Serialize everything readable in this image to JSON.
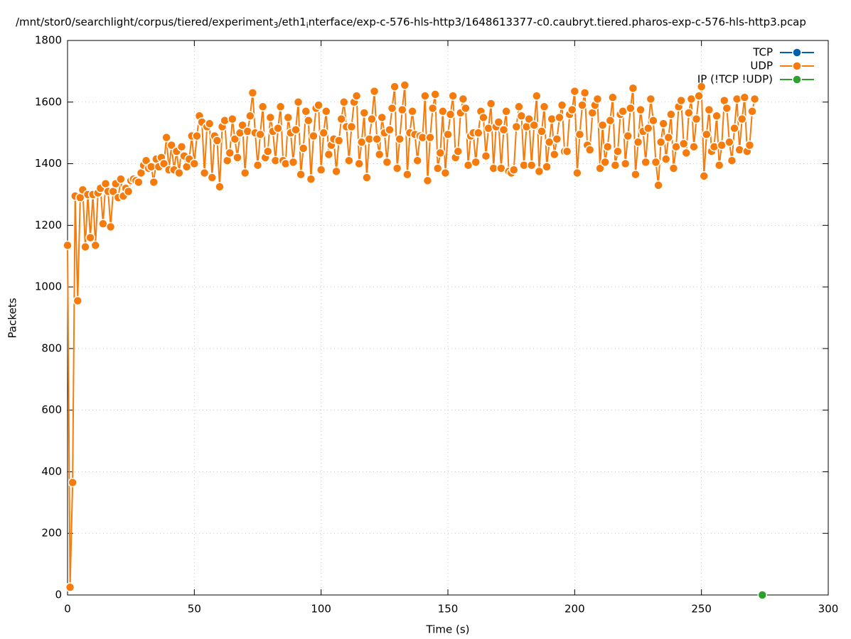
{
  "chart_data": {
    "type": "line",
    "title": [
      "/mnt/stor0/searchlight/corpus/tiered/experiment",
      "3",
      "/eth1",
      "i",
      "nterface/exp-c-576-hls-http3/1648613377-c0.caubryt.tiered.pharos-exp-c-576-hls-http3.pcap"
    ],
    "x_label": "Time (s)",
    "y_label": "Packets",
    "xlim": [
      0,
      300
    ],
    "xticks": [
      0,
      50,
      100,
      150,
      200,
      250,
      300
    ],
    "ylim": [
      0,
      1800
    ],
    "yticks": [
      0,
      200,
      400,
      600,
      800,
      1000,
      1200,
      1400,
      1600,
      1800
    ],
    "grid": true,
    "legend": "top-right",
    "series": [
      {
        "name": "TCP",
        "color": "#0060ad",
        "x": [],
        "values": []
      },
      {
        "name": "UDP",
        "color": "#f57c0c",
        "x": [
          0,
          1,
          2,
          3,
          4,
          5,
          6,
          7,
          8,
          9,
          10,
          11,
          12,
          13,
          14,
          15,
          16,
          17,
          18,
          19,
          20,
          21,
          22,
          23,
          24,
          25,
          26,
          27,
          28,
          29,
          30,
          31,
          32,
          33,
          34,
          35,
          36,
          37,
          38,
          39,
          40,
          41,
          42,
          43,
          44,
          45,
          46,
          47,
          48,
          49,
          50,
          51,
          52,
          53,
          54,
          55,
          56,
          57,
          58,
          59,
          60,
          61,
          62,
          63,
          64,
          65,
          66,
          67,
          68,
          69,
          70,
          71,
          72,
          73,
          74,
          75,
          76,
          77,
          78,
          79,
          80,
          81,
          82,
          83,
          84,
          85,
          86,
          87,
          88,
          89,
          90,
          91,
          92,
          93,
          94,
          95,
          96,
          97,
          98,
          99,
          100,
          101,
          102,
          103,
          104,
          105,
          106,
          107,
          108,
          109,
          110,
          111,
          112,
          113,
          114,
          115,
          116,
          117,
          118,
          119,
          120,
          121,
          122,
          123,
          124,
          125,
          126,
          127,
          128,
          129,
          130,
          131,
          132,
          133,
          134,
          135,
          136,
          137,
          138,
          139,
          140,
          141,
          142,
          143,
          144,
          145,
          146,
          147,
          148,
          149,
          150,
          151,
          152,
          153,
          154,
          155,
          156,
          157,
          158,
          159,
          160,
          161,
          162,
          163,
          164,
          165,
          166,
          167,
          168,
          169,
          170,
          171,
          172,
          173,
          174,
          175,
          176,
          177,
          178,
          179,
          180,
          181,
          182,
          183,
          184,
          185,
          186,
          187,
          188,
          189,
          190,
          191,
          192,
          193,
          194,
          195,
          196,
          197,
          198,
          199,
          200,
          201,
          202,
          203,
          204,
          205,
          206,
          207,
          208,
          209,
          210,
          211,
          212,
          213,
          214,
          215,
          216,
          217,
          218,
          219,
          220,
          221,
          222,
          223,
          224,
          225,
          226,
          227,
          228,
          229,
          230,
          231,
          232,
          233,
          234,
          235,
          236,
          237,
          238,
          239,
          240,
          241,
          242,
          243,
          244,
          245,
          246,
          247,
          248,
          249,
          250,
          251,
          252,
          253,
          254,
          255,
          256,
          257,
          258,
          259,
          260,
          261,
          262,
          263,
          264,
          265,
          266,
          267,
          268,
          269,
          270,
          271
        ],
        "values": [
          1135,
          25,
          365,
          1295,
          955,
          1290,
          1315,
          1130,
          1300,
          1160,
          1300,
          1135,
          1305,
          1320,
          1205,
          1335,
          1310,
          1195,
          1310,
          1335,
          1290,
          1350,
          1295,
          1320,
          1310,
          1345,
          1350,
          1345,
          1340,
          1370,
          1395,
          1410,
          1385,
          1390,
          1340,
          1415,
          1390,
          1420,
          1400,
          1485,
          1380,
          1460,
          1380,
          1440,
          1370,
          1455,
          1425,
          1390,
          1415,
          1490,
          1400,
          1490,
          1555,
          1535,
          1370,
          1520,
          1530,
          1355,
          1490,
          1475,
          1325,
          1520,
          1540,
          1410,
          1435,
          1545,
          1480,
          1420,
          1500,
          1525,
          1370,
          1505,
          1555,
          1630,
          1500,
          1395,
          1495,
          1585,
          1420,
          1440,
          1550,
          1505,
          1410,
          1515,
          1585,
          1410,
          1400,
          1550,
          1500,
          1405,
          1510,
          1600,
          1365,
          1450,
          1570,
          1540,
          1350,
          1490,
          1580,
          1590,
          1380,
          1500,
          1570,
          1430,
          1460,
          1480,
          1375,
          1475,
          1545,
          1600,
          1520,
          1410,
          1520,
          1600,
          1620,
          1400,
          1470,
          1565,
          1355,
          1480,
          1545,
          1635,
          1480,
          1430,
          1550,
          1500,
          1405,
          1510,
          1580,
          1650,
          1385,
          1480,
          1575,
          1655,
          1365,
          1500,
          1570,
          1495,
          1410,
          1490,
          1485,
          1620,
          1345,
          1485,
          1580,
          1625,
          1385,
          1435,
          1570,
          1370,
          1495,
          1560,
          1620,
          1420,
          1440,
          1565,
          1610,
          1580,
          1395,
          1490,
          1500,
          1405,
          1500,
          1570,
          1550,
          1425,
          1515,
          1595,
          1385,
          1520,
          1535,
          1385,
          1510,
          1570,
          1375,
          1370,
          1380,
          1520,
          1585,
          1555,
          1395,
          1520,
          1545,
          1395,
          1525,
          1620,
          1375,
          1505,
          1585,
          1390,
          1470,
          1545,
          1430,
          1480,
          1550,
          1590,
          1440,
          1440,
          1560,
          1575,
          1635,
          1370,
          1495,
          1590,
          1630,
          1460,
          1445,
          1565,
          1590,
          1610,
          1385,
          1525,
          1405,
          1455,
          1540,
          1615,
          1395,
          1440,
          1560,
          1570,
          1400,
          1490,
          1580,
          1645,
          1365,
          1470,
          1575,
          1505,
          1405,
          1515,
          1610,
          1540,
          1405,
          1330,
          1470,
          1530,
          1415,
          1485,
          1560,
          1385,
          1455,
          1585,
          1605,
          1465,
          1435,
          1565,
          1610,
          1455,
          1545,
          1620,
          1650,
          1360,
          1495,
          1575,
          1440,
          1455,
          1555,
          1395,
          1460,
          1605,
          1580,
          1470,
          1410,
          1515,
          1610,
          1445,
          1545,
          1615,
          1440,
          1460,
          1570,
          1610
        ]
      },
      {
        "name": "IP (!TCP  !UDP)",
        "color": "#2ca02c",
        "x": [
          274
        ],
        "values": [
          0
        ]
      }
    ]
  }
}
